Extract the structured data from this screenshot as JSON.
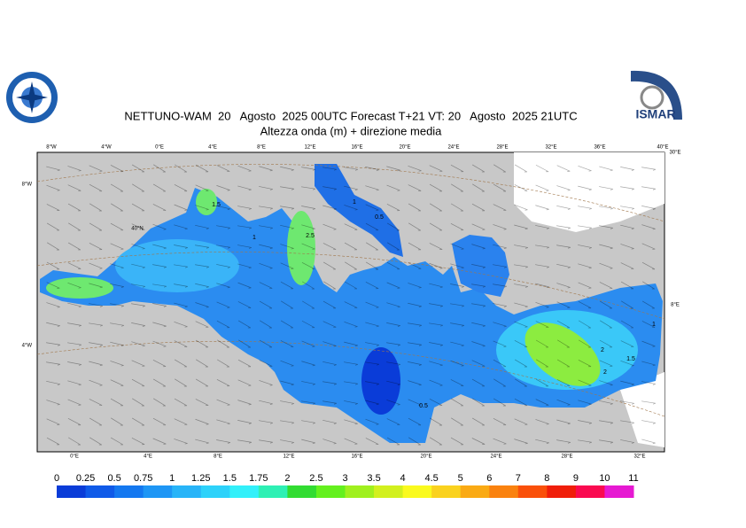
{
  "header": {
    "title": "NETTUNO-WAM  20   Agosto  2025 00UTC Forecast T+21 VT: 20   Agosto  2025 21UTC",
    "subtitle": "Altezza onda (m) + direzione media"
  },
  "logo_text": "ISMAR",
  "map": {
    "top_lon_labels": [
      "8°W",
      "4°W",
      "0°E",
      "4°E",
      "8°E",
      "12°E",
      "16°E",
      "20°E",
      "24°E",
      "28°E",
      "32°E",
      "36°E",
      "40°E"
    ],
    "bottom_lon_labels": [
      "0°E",
      "4°E",
      "8°E",
      "12°E",
      "16°E",
      "20°E",
      "24°E",
      "28°E",
      "32°E"
    ],
    "left_lat_labels": [
      "8°W",
      "4°W"
    ],
    "inner_labels": [
      "40°N",
      "30°E",
      "8°E"
    ],
    "contour_labels": [
      "1.5",
      "1",
      "0.5",
      "2.5",
      "1",
      "2",
      "1.5",
      "2",
      "1",
      "0.5"
    ]
  },
  "colorbar": {
    "labels": [
      0,
      0.25,
      0.5,
      0.75,
      1,
      1.25,
      1.5,
      1.75,
      2,
      2.5,
      3,
      3.5,
      4,
      4.5,
      5,
      6,
      7,
      8,
      9,
      10,
      11
    ],
    "colors": [
      "#0a3cd8",
      "#0f5ae8",
      "#1478f0",
      "#1e96f5",
      "#28b4f8",
      "#2dd2fa",
      "#32f0fa",
      "#2ef0b4",
      "#32dc32",
      "#64f01e",
      "#a0f01e",
      "#d2f01e",
      "#fafa1e",
      "#fad21e",
      "#faaa14",
      "#fa820f",
      "#fa500a",
      "#f01e0a",
      "#fa0a50",
      "#e619d2"
    ]
  }
}
